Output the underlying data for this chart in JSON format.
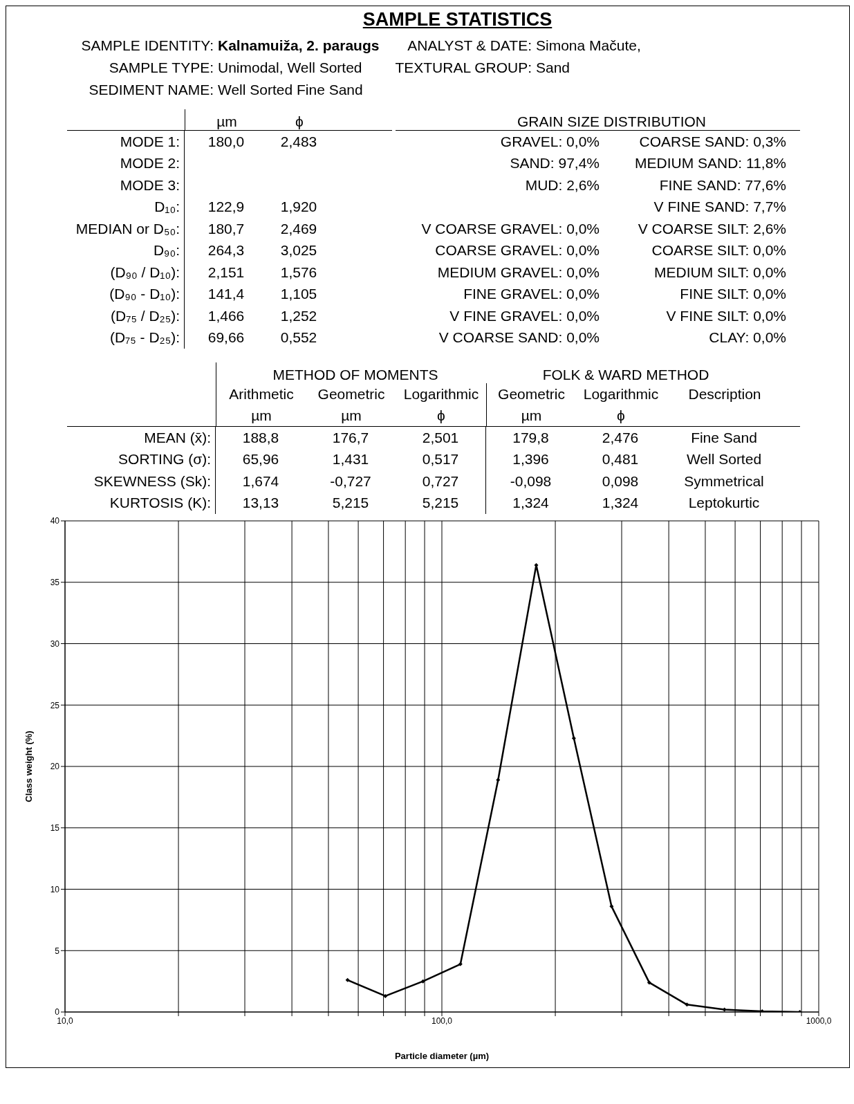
{
  "chart_data": [
    {
      "type": "other",
      "title": "SAMPLE STATISTICS",
      "annotations": [
        "SAMPLE IDENTITY: Kalnamuiža, 2. paraugs",
        "ANALYST & DATE: Simona Mačute,",
        "SAMPLE TYPE: Unimodal, Well Sorted",
        "TEXTURAL GROUP: Sand",
        "SEDIMENT NAME: Well Sorted Fine Sand",
        "µm",
        "ϕ",
        "MODE 1:",
        "180,0",
        "2,483",
        "MODE 2:",
        "MODE 3:",
        "D₁₀:",
        "122,9",
        "1,920",
        "MEDIAN or D₅₀:",
        "180,7",
        "2,469",
        "D₉₀:",
        "264,3",
        "3,025",
        "(D₉₀ / D₁₀):",
        "2,151",
        "1,576",
        "(D₉₀ - D₁₀):",
        "141,4",
        "1,105",
        "(D₇₅ / D₂₅):",
        "1,466",
        "1,252",
        "(D₇₅ - D₂₅):",
        "69,66",
        "0,552",
        "GRAIN SIZE DISTRIBUTION",
        "GRAVEL: 0,0%",
        "SAND: 97,4%",
        "MUD: 2,6%",
        "V COARSE GRAVEL: 0,0%",
        "COARSE GRAVEL: 0,0%",
        "MEDIUM GRAVEL: 0,0%",
        "FINE GRAVEL: 0,0%",
        "V FINE GRAVEL: 0,0%",
        "V COARSE SAND: 0,0%",
        "COARSE SAND: 0,3%",
        "MEDIUM SAND: 11,8%",
        "FINE SAND: 77,6%",
        "V FINE SAND: 7,7%",
        "V COARSE SILT: 2,6%",
        "COARSE SILT: 0,0%",
        "MEDIUM SILT: 0,0%",
        "FINE SILT: 0,0%",
        "V FINE SILT: 0,0%",
        "CLAY: 0,0%",
        "METHOD OF MOMENTS",
        "FOLK & WARD METHOD",
        "Arithmetic",
        "Geometric",
        "Logarithmic",
        "Geometric",
        "Logarithmic",
        "Description",
        "µm",
        "µm",
        "ϕ",
        "µm",
        "ϕ",
        "MEAN (x̄):",
        "188,8",
        "176,7",
        "2,501",
        "179,8",
        "2,476",
        "Fine Sand",
        "SORTING (σ):",
        "65,96",
        "1,431",
        "0,517",
        "1,396",
        "0,481",
        "Well Sorted",
        "SKEWNESS (Sk):",
        "1,674",
        "-0,727",
        "0,727",
        "-0,098",
        "0,098",
        "Symmetrical",
        "KURTOSIS (K):",
        "13,13",
        "5,215",
        "5,215",
        "1,324",
        "1,324",
        "Leptokurtic"
      ]
    },
    {
      "type": "line",
      "xlabel": "Particle diameter (µm)",
      "ylabel": "Class weight (%)",
      "log": "x",
      "x": [
        56.2,
        70.8,
        89.1,
        112,
        141,
        178,
        224,
        282,
        355,
        447,
        562,
        708,
        891
      ],
      "values": [
        2.6,
        1.3,
        2.5,
        3.9,
        18.9,
        36.4,
        22.3,
        8.6,
        2.4,
        0.6,
        0.2,
        0.05,
        0.0
      ],
      "color": "#000000",
      "marker": "diamond",
      "grid": true,
      "xlim": [
        10,
        1000
      ],
      "xticks": [
        {
          "value": 10,
          "label": "10,0"
        },
        {
          "value": 20,
          "label": null
        },
        {
          "value": 30,
          "label": null
        },
        {
          "value": 40,
          "label": null
        },
        {
          "value": 50,
          "label": null
        },
        {
          "value": 60,
          "label": null
        },
        {
          "value": 70,
          "label": null
        },
        {
          "value": 80,
          "label": null
        },
        {
          "value": 90,
          "label": null
        },
        {
          "value": 100,
          "label": "100,0"
        },
        {
          "value": 200,
          "label": null
        },
        {
          "value": 300,
          "label": null
        },
        {
          "value": 400,
          "label": null
        },
        {
          "value": 500,
          "label": null
        },
        {
          "value": 600,
          "label": null
        },
        {
          "value": 700,
          "label": null
        },
        {
          "value": 800,
          "label": null
        },
        {
          "value": 900,
          "label": null
        },
        {
          "value": 1000,
          "label": "1000,0"
        }
      ],
      "ylim": [
        0,
        40
      ],
      "yticks": [
        0,
        5,
        10,
        15,
        20,
        25,
        30,
        35,
        40
      ]
    }
  ]
}
